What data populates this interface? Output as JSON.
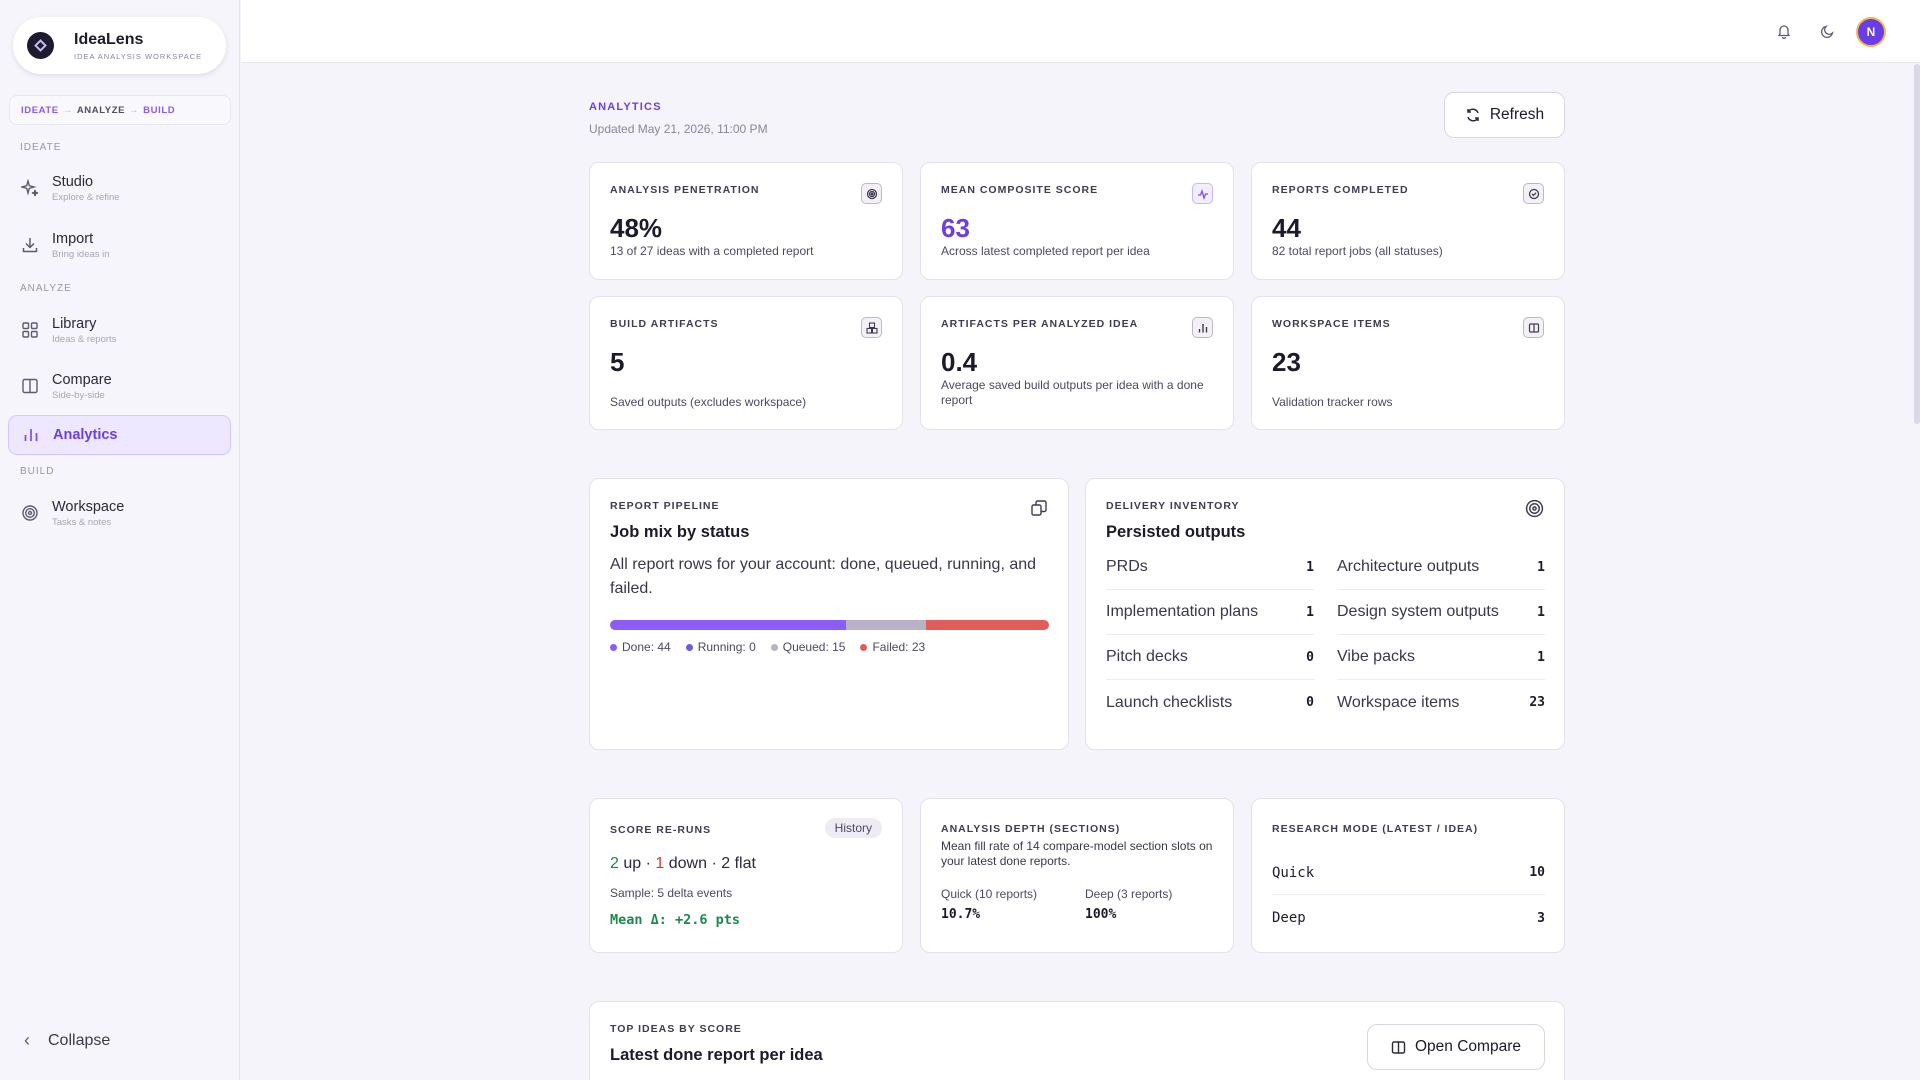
{
  "brand": {
    "name": "IdeaLens",
    "subtitle": "IDEA ANALYSIS WORKSPACE"
  },
  "flow": {
    "step1": "IDEATE",
    "step2": "ANALYZE",
    "step3": "BUILD",
    "sep": "→"
  },
  "sidebar": {
    "sections": {
      "ideate": "IDEATE",
      "analyze": "ANALYZE",
      "build": "BUILD"
    },
    "items": [
      {
        "title": "Studio",
        "sub": "Explore & refine",
        "icon": "sparkles-icon"
      },
      {
        "title": "Import",
        "sub": "Bring ideas in",
        "icon": "download-icon"
      },
      {
        "title": "Library",
        "sub": "Ideas & reports",
        "icon": "grid-icon"
      },
      {
        "title": "Compare",
        "sub": "Side-by-side",
        "icon": "columns-icon"
      },
      {
        "title": "Analytics",
        "sub": "",
        "icon": "bar-chart-icon"
      },
      {
        "title": "Workspace",
        "sub": "Tasks & notes",
        "icon": "target-icon"
      }
    ],
    "collapse_label": "Collapse"
  },
  "topbar": {
    "avatar_initial": "N"
  },
  "header": {
    "section": "ANALYTICS",
    "updated": "Updated May 21, 2026, 11:00 PM",
    "refresh_label": "Refresh"
  },
  "stats": [
    {
      "caption": "ANALYSIS PENETRATION",
      "value": "48%",
      "sub": "13 of 27 ideas with a completed report"
    },
    {
      "caption": "MEAN COMPOSITE SCORE",
      "value": "63",
      "sub": "Across latest completed report per idea"
    },
    {
      "caption": "REPORTS COMPLETED",
      "value": "44",
      "sub": "82 total report jobs (all statuses)"
    },
    {
      "caption": "BUILD ARTIFACTS",
      "value": "5",
      "sub": "Saved outputs (excludes workspace)"
    },
    {
      "caption": "ARTIFACTS PER ANALYZED IDEA",
      "value": "0.4",
      "sub": "Average saved build outputs per idea with a done report"
    },
    {
      "caption": "WORKSPACE ITEMS",
      "value": "23",
      "sub": "Validation tracker rows"
    }
  ],
  "pipeline": {
    "caption": "REPORT PIPELINE",
    "title": "Job mix by status",
    "desc": "All report rows for your account: done, queued, running, and failed.",
    "statuses": [
      {
        "label": "Done: 44",
        "count": 44,
        "color": "#8b5cf6"
      },
      {
        "label": "Running: 0",
        "count": 0,
        "color": "#6b5ce7"
      },
      {
        "label": "Queued: 15",
        "count": 15,
        "color": "#b9b2c6"
      },
      {
        "label": "Failed: 23",
        "count": 23,
        "color": "#e25c5c"
      }
    ]
  },
  "inventory": {
    "caption": "DELIVERY INVENTORY",
    "title": "Persisted outputs",
    "left": [
      {
        "label": "PRDs",
        "value": "1"
      },
      {
        "label": "Implementation plans",
        "value": "1"
      },
      {
        "label": "Pitch decks",
        "value": "0"
      },
      {
        "label": "Launch checklists",
        "value": "0"
      }
    ],
    "right": [
      {
        "label": "Architecture outputs",
        "value": "1"
      },
      {
        "label": "Design system outputs",
        "value": "1"
      },
      {
        "label": "Vibe packs",
        "value": "1"
      },
      {
        "label": "Workspace items",
        "value": "23"
      }
    ]
  },
  "reruns": {
    "caption": "SCORE RE-RUNS",
    "history_label": "History",
    "up": "2",
    "up_label": "up",
    "down": "1",
    "down_label": "down",
    "flat": "2 flat",
    "sep": "·",
    "sample": "Sample: 5 delta events",
    "mean": "Mean Δ: +2.6 pts"
  },
  "depth": {
    "caption": "ANALYSIS DEPTH (SECTIONS)",
    "desc": "Mean fill rate of 14 compare-model section slots on your latest done reports.",
    "quick_label": "Quick (10 reports)",
    "quick_value": "10.7%",
    "deep_label": "Deep (3 reports)",
    "deep_value": "100%"
  },
  "research": {
    "caption": "RESEARCH MODE (LATEST / IDEA)",
    "rows": [
      {
        "label": "Quick",
        "value": "10"
      },
      {
        "label": "Deep",
        "value": "3"
      }
    ]
  },
  "top_ideas": {
    "caption": "TOP IDEAS BY SCORE",
    "title": "Latest done report per idea",
    "button_label": "Open Compare"
  }
}
